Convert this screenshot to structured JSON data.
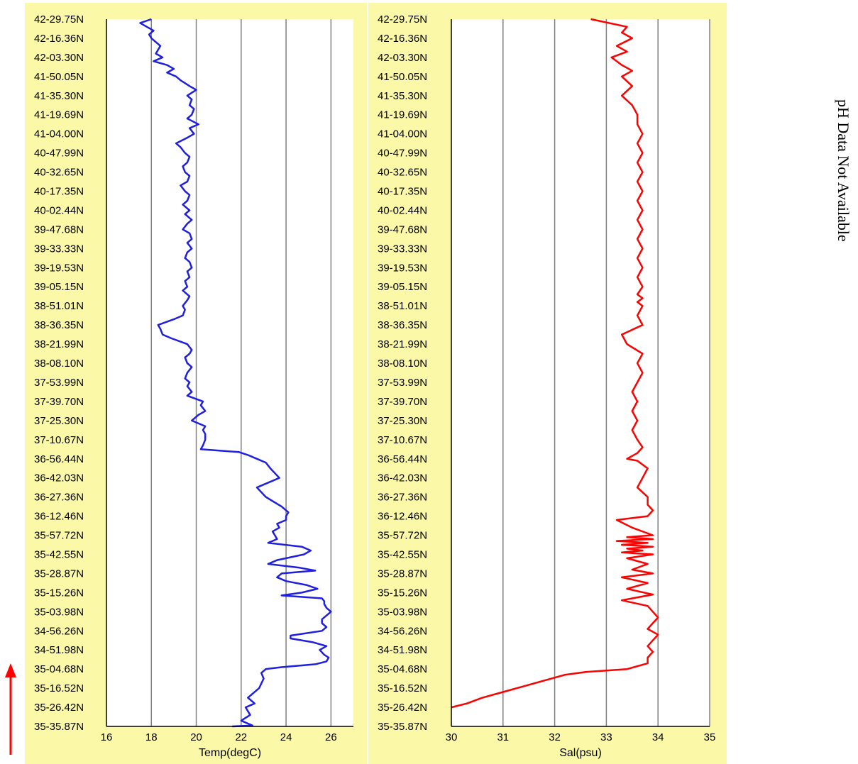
{
  "chart_data": [
    {
      "type": "line",
      "xlabel": "Temp(degC)",
      "ylabel": "",
      "xlim": [
        16,
        27
      ],
      "xticks": [
        16,
        18,
        20,
        22,
        24,
        26
      ],
      "grid": "vertical",
      "color": "#1f1fe0",
      "y_tick_labels": [
        "35-35.87N",
        "35-26.42N",
        "35-16.52N",
        "35-04.68N",
        "34-51.98N",
        "34-56.26N",
        "35-03.98N",
        "35-15.26N",
        "35-28.87N",
        "35-42.55N",
        "35-57.72N",
        "36-12.46N",
        "36-27.36N",
        "36-42.03N",
        "36-56.44N",
        "37-10.67N",
        "37-25.30N",
        "37-39.70N",
        "37-53.99N",
        "38-08.10N",
        "38-21.99N",
        "38-36.35N",
        "38-51.01N",
        "39-05.15N",
        "39-19.53N",
        "39-33.33N",
        "39-47.68N",
        "40-02.44N",
        "40-17.35N",
        "40-32.65N",
        "40-47.99N",
        "41-04.00N",
        "41-19.69N",
        "41-35.30N",
        "41-50.05N",
        "42-03.30N",
        "42-16.36N",
        "42-29.75N"
      ],
      "y_index": [
        0,
        0.05,
        0.3,
        0.6,
        1.0,
        1.2,
        1.5,
        2.0,
        2.5,
        2.8,
        3.0,
        3.1,
        3.25,
        3.4,
        3.6,
        3.75,
        4.0,
        4.2,
        4.4,
        4.6,
        4.75,
        5.0,
        5.2,
        5.4,
        5.6,
        5.8,
        6.0,
        6.2,
        6.4,
        6.55,
        6.7,
        6.85,
        7.0,
        7.2,
        7.4,
        7.6,
        7.8,
        8.0,
        8.15,
        8.3,
        8.5,
        8.7,
        9.0,
        9.2,
        9.4,
        9.6,
        9.8,
        10.0,
        10.2,
        10.4,
        10.6,
        10.8,
        11.0,
        11.2,
        11.5,
        12.0,
        12.5,
        13.0,
        13.5,
        13.8,
        14.0,
        14.2,
        14.35,
        14.5,
        14.7,
        15.0,
        15.3,
        15.5,
        15.7,
        16.0,
        16.3,
        16.5,
        16.8,
        17.0,
        17.3,
        17.5,
        17.8,
        18.0,
        18.2,
        18.5,
        18.8,
        19.0,
        19.3,
        19.5,
        19.7,
        20.0,
        20.3,
        20.5,
        20.8,
        21.0,
        21.3,
        21.5,
        21.8,
        22.0,
        22.3,
        22.5,
        22.8,
        23.0,
        23.3,
        23.5,
        23.8,
        24.0,
        24.3,
        24.5,
        24.8,
        25.0,
        25.3,
        25.5,
        25.8,
        26.0,
        26.3,
        26.5,
        26.8,
        27.0,
        27.3,
        27.5,
        27.8,
        28.0,
        28.3,
        28.5,
        28.8,
        29.0,
        29.3,
        29.5,
        29.8,
        30.0,
        30.3,
        30.5,
        30.8,
        31.0,
        31.3,
        31.5,
        31.8,
        32.0,
        32.3,
        32.5,
        32.8,
        33.0,
        33.3,
        33.5,
        33.8,
        34.0,
        34.2,
        34.4,
        34.6,
        34.8,
        35.0,
        35.2,
        35.4,
        35.6,
        35.8,
        36.0,
        36.2,
        36.4,
        36.6,
        36.8,
        37.0
      ],
      "values": [
        21.6,
        22.5,
        22.0,
        22.4,
        22.2,
        22.6,
        22.3,
        22.8,
        23.0,
        22.9,
        23.1,
        23.8,
        25.3,
        25.8,
        25.9,
        25.7,
        25.5,
        25.8,
        25.2,
        24.2,
        24.2,
        25.6,
        25.8,
        25.6,
        25.6,
        25.8,
        26.0,
        25.8,
        25.7,
        25.7,
        25.6,
        23.8,
        24.7,
        25.4,
        24.9,
        24.0,
        23.6,
        23.8,
        25.3,
        24.6,
        23.2,
        23.6,
        24.8,
        25.1,
        24.7,
        23.2,
        23.6,
        23.5,
        23.4,
        23.7,
        23.6,
        24.0,
        24.0,
        24.1,
        23.8,
        23.1,
        22.7,
        23.7,
        23.3,
        23.1,
        22.7,
        22.3,
        21.9,
        20.2,
        20.3,
        20.4,
        20.4,
        20.3,
        20.4,
        19.8,
        20.1,
        20.4,
        20.2,
        20.3,
        19.6,
        19.8,
        19.6,
        19.7,
        19.5,
        19.6,
        19.8,
        19.6,
        19.5,
        19.7,
        19.8,
        19.6,
        18.9,
        18.5,
        18.4,
        18.3,
        19.0,
        19.4,
        19.5,
        19.4,
        19.6,
        19.7,
        19.4,
        19.6,
        19.5,
        19.7,
        19.6,
        19.8,
        19.7,
        19.5,
        19.6,
        19.8,
        19.6,
        19.8,
        19.7,
        19.4,
        19.6,
        19.8,
        19.5,
        19.7,
        19.4,
        19.6,
        19.7,
        19.5,
        19.3,
        19.6,
        19.7,
        19.5,
        19.4,
        19.6,
        19.7,
        19.5,
        19.3,
        19.1,
        19.6,
        19.9,
        19.7,
        20.1,
        19.6,
        19.8,
        19.9,
        19.7,
        19.8,
        19.6,
        20.0,
        19.7,
        19.3,
        19.1,
        18.7,
        19.0,
        18.7,
        18.1,
        18.5,
        18.2,
        18.3,
        18.4,
        18.2,
        18.0,
        17.9,
        18.1,
        17.8,
        17.5,
        18.0
      ]
    },
    {
      "type": "line",
      "xlabel": "Sal(psu)",
      "ylabel": "",
      "xlim": [
        30,
        35
      ],
      "xticks": [
        30,
        31,
        32,
        33,
        34,
        35
      ],
      "grid": "vertical",
      "color": "#ff0000",
      "y_tick_labels": [
        "35-35.87N",
        "35-26.42N",
        "35-16.52N",
        "35-04.68N",
        "34-51.98N",
        "34-56.26N",
        "35-03.98N",
        "35-15.26N",
        "35-28.87N",
        "35-42.55N",
        "35-57.72N",
        "36-12.46N",
        "36-27.36N",
        "36-42.03N",
        "36-56.44N",
        "37-10.67N",
        "37-25.30N",
        "37-39.70N",
        "37-53.99N",
        "38-08.10N",
        "38-21.99N",
        "38-36.35N",
        "38-51.01N",
        "39-05.15N",
        "39-19.53N",
        "39-33.33N",
        "39-47.68N",
        "40-02.44N",
        "40-17.35N",
        "40-32.65N",
        "40-47.99N",
        "41-04.00N",
        "41-19.69N",
        "41-35.30N",
        "41-50.05N",
        "42-03.30N",
        "42-16.36N",
        "42-29.75N"
      ],
      "y_index": [
        1.0,
        1.2,
        1.5,
        1.8,
        2.1,
        2.4,
        2.7,
        2.85,
        3.0,
        3.3,
        3.6,
        3.9,
        4.2,
        4.5,
        4.8,
        5.1,
        5.4,
        5.7,
        6.0,
        6.3,
        6.6,
        6.9,
        7.2,
        7.5,
        7.8,
        8.0,
        8.2,
        8.5,
        8.8,
        9.0,
        9.1,
        9.2,
        9.3,
        9.4,
        9.5,
        9.6,
        9.7,
        9.8,
        9.9,
        10.0,
        10.4,
        10.8,
        11.0,
        11.3,
        11.6,
        12.0,
        12.5,
        13.0,
        13.5,
        13.9,
        14.0,
        14.3,
        14.6,
        15.0,
        15.5,
        16.0,
        16.5,
        17.0,
        17.5,
        18.0,
        18.5,
        19.0,
        19.5,
        20.0,
        20.5,
        21.0,
        21.5,
        22.0,
        22.2,
        22.4,
        22.6,
        23.0,
        23.5,
        24.0,
        24.5,
        25.0,
        25.5,
        26.0,
        26.5,
        27.0,
        27.5,
        28.0,
        28.5,
        29.0,
        29.5,
        30.0,
        30.5,
        31.0,
        31.5,
        32.0,
        32.5,
        33.0,
        33.5,
        34.0,
        34.3,
        34.6,
        35.0,
        35.3,
        35.6,
        36.0,
        36.3,
        36.6,
        37.0
      ],
      "values": [
        30.0,
        30.3,
        30.6,
        31.0,
        31.4,
        31.8,
        32.2,
        32.6,
        33.4,
        33.8,
        33.8,
        33.9,
        33.8,
        33.9,
        34.0,
        33.8,
        33.9,
        34.0,
        33.9,
        33.8,
        33.3,
        33.9,
        33.4,
        33.8,
        33.3,
        33.9,
        33.5,
        33.8,
        33.4,
        33.9,
        33.3,
        33.7,
        33.4,
        33.9,
        33.3,
        33.8,
        33.2,
        33.9,
        33.4,
        33.9,
        33.5,
        33.2,
        33.8,
        33.9,
        33.8,
        33.8,
        33.6,
        33.7,
        33.8,
        33.6,
        33.4,
        33.6,
        33.7,
        33.6,
        33.5,
        33.6,
        33.5,
        33.6,
        33.5,
        33.6,
        33.7,
        33.6,
        33.7,
        33.4,
        33.3,
        33.7,
        33.6,
        33.7,
        33.6,
        33.7,
        33.6,
        33.7,
        33.6,
        33.7,
        33.6,
        33.7,
        33.6,
        33.7,
        33.6,
        33.7,
        33.6,
        33.7,
        33.6,
        33.7,
        33.6,
        33.7,
        33.6,
        33.7,
        33.6,
        33.6,
        33.5,
        33.3,
        33.5,
        33.3,
        33.5,
        33.3,
        33.1,
        33.4,
        33.2,
        33.5,
        33.3,
        33.4,
        32.7
      ]
    }
  ],
  "side_note": "pH Data Not Available"
}
